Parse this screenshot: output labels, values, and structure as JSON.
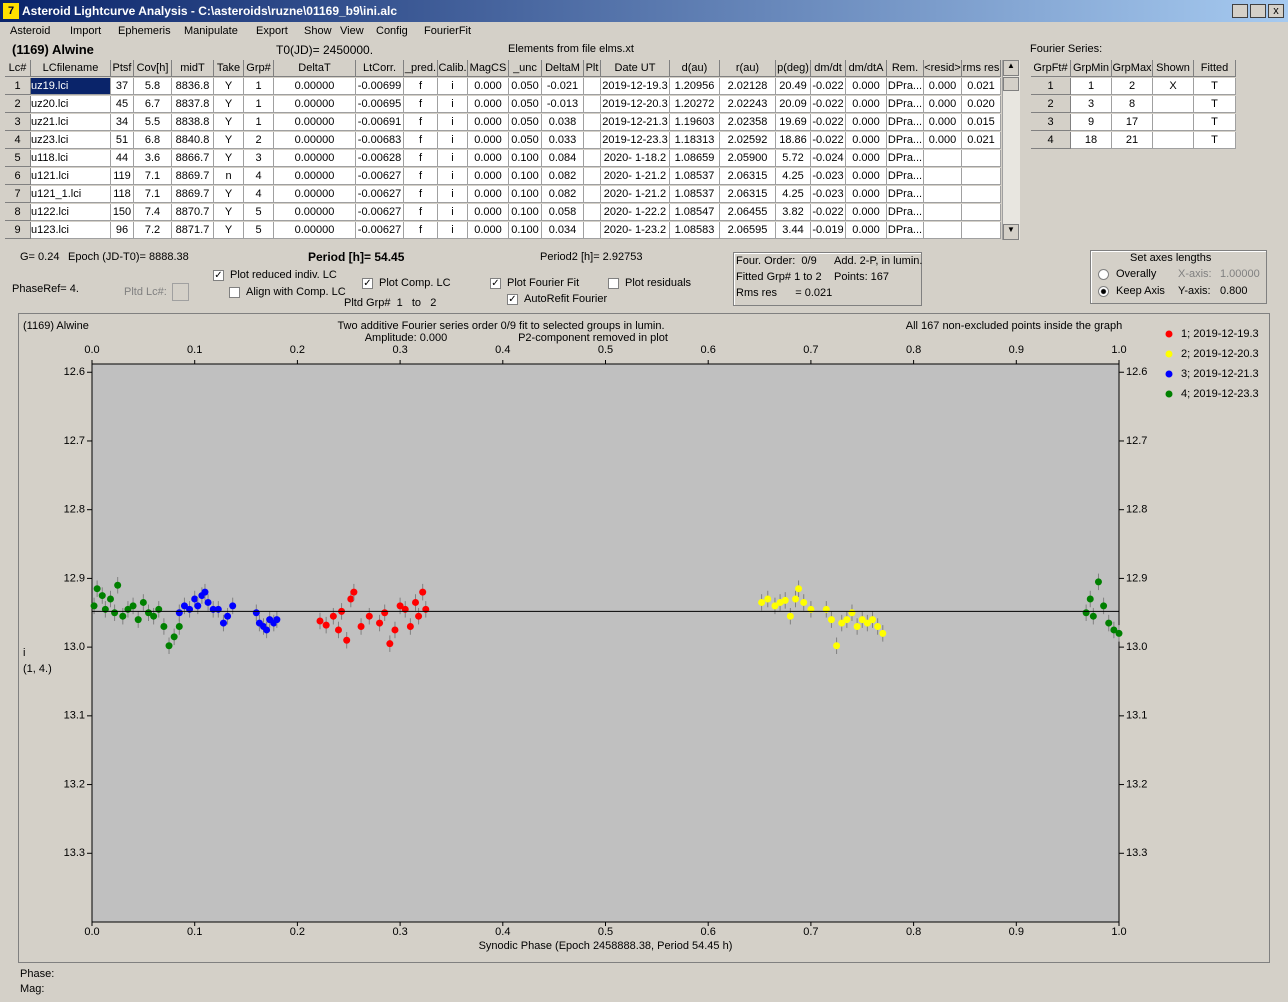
{
  "window": {
    "title": "Asteroid Lightcurve Analysis - C:\\asteroids\\ruzne\\01169_b9\\ini.alc"
  },
  "menu": [
    "Asteroid",
    "Import",
    "Ephemeris",
    "Manipulate",
    "Export",
    "Show",
    "View",
    "Config",
    "FourierFit"
  ],
  "header": {
    "asteroid": "(1169) Alwine",
    "t0": "T0(JD)= 2450000.",
    "elements": "Elements from file elms.xt",
    "fourier_title": "Fourier Series:"
  },
  "lc_table": {
    "columns": [
      "Lc#",
      "LCfilename",
      "Ptsf",
      "Cov[h]",
      "midT",
      "Take",
      "Grp#",
      "DeltaT",
      "LtCorr.",
      "_pred.",
      "Calib.",
      "MagCS",
      "_unc",
      "DeltaM",
      "Plt",
      "Date UT",
      "d(au)",
      "r(au)",
      "p(deg)",
      "dm/dt",
      "dm/dtA",
      "Rem.",
      "<resid>",
      "rms res"
    ],
    "rows": [
      [
        "1",
        "uz19.lci",
        "37",
        "5.8",
        "8836.8",
        "Y",
        "1",
        "0.00000",
        "-0.00699",
        "f",
        "i",
        "0.000",
        "0.050",
        "-0.021",
        null,
        "2019-12-19.3",
        "1.20956",
        "2.02128",
        "20.49",
        "-0.022",
        "0.000",
        "DPra...",
        "0.000",
        "0.021"
      ],
      [
        "2",
        "uz20.lci",
        "45",
        "6.7",
        "8837.8",
        "Y",
        "1",
        "0.00000",
        "-0.00695",
        "f",
        "i",
        "0.000",
        "0.050",
        "-0.013",
        null,
        "2019-12-20.3",
        "1.20272",
        "2.02243",
        "20.09",
        "-0.022",
        "0.000",
        "DPra...",
        "0.000",
        "0.020"
      ],
      [
        "3",
        "uz21.lci",
        "34",
        "5.5",
        "8838.8",
        "Y",
        "1",
        "0.00000",
        "-0.00691",
        "f",
        "i",
        "0.000",
        "0.050",
        "0.038",
        null,
        "2019-12-21.3",
        "1.19603",
        "2.02358",
        "19.69",
        "-0.022",
        "0.000",
        "DPra...",
        "0.000",
        "0.015"
      ],
      [
        "4",
        "uz23.lci",
        "51",
        "6.8",
        "8840.8",
        "Y",
        "2",
        "0.00000",
        "-0.00683",
        "f",
        "i",
        "0.000",
        "0.050",
        "0.033",
        null,
        "2019-12-23.3",
        "1.18313",
        "2.02592",
        "18.86",
        "-0.022",
        "0.000",
        "DPra...",
        "0.000",
        "0.021"
      ],
      [
        "5",
        "u118.lci",
        "44",
        "3.6",
        "8866.7",
        "Y",
        "3",
        "0.00000",
        "-0.00628",
        "f",
        "i",
        "0.000",
        "0.100",
        "0.084",
        null,
        "2020- 1-18.2",
        "1.08659",
        "2.05900",
        "5.72",
        "-0.024",
        "0.000",
        "DPra...",
        null,
        null
      ],
      [
        "6",
        "u121.lci",
        "119",
        "7.1",
        "8869.7",
        "n",
        "4",
        "0.00000",
        "-0.00627",
        "f",
        "i",
        "0.000",
        "0.100",
        "0.082",
        null,
        "2020- 1-21.2",
        "1.08537",
        "2.06315",
        "4.25",
        "-0.023",
        "0.000",
        "DPra...",
        null,
        null
      ],
      [
        "7",
        "u121_1.lci",
        "118",
        "7.1",
        "8869.7",
        "Y",
        "4",
        "0.00000",
        "-0.00627",
        "f",
        "i",
        "0.000",
        "0.100",
        "0.082",
        null,
        "2020- 1-21.2",
        "1.08537",
        "2.06315",
        "4.25",
        "-0.023",
        "0.000",
        "DPra...",
        null,
        null
      ],
      [
        "8",
        "u122.lci",
        "150",
        "7.4",
        "8870.7",
        "Y",
        "5",
        "0.00000",
        "-0.00627",
        "f",
        "i",
        "0.000",
        "0.100",
        "0.058",
        null,
        "2020- 1-22.2",
        "1.08547",
        "2.06455",
        "3.82",
        "-0.022",
        "0.000",
        "DPra...",
        null,
        null
      ],
      [
        "9",
        "u123.lci",
        "96",
        "7.2",
        "8871.7",
        "Y",
        "5",
        "0.00000",
        "-0.00627",
        "f",
        "i",
        "0.000",
        "0.100",
        "0.034",
        null,
        "2020- 1-23.2",
        "1.08583",
        "2.06595",
        "3.44",
        "-0.019",
        "0.000",
        "DPra...",
        null,
        null
      ]
    ]
  },
  "fourier_table": {
    "columns": [
      "GrpFt#",
      "GrpMin",
      "GrpMax",
      "Shown",
      "Fitted"
    ],
    "rows": [
      [
        "1",
        "1",
        "2",
        "X",
        "T"
      ],
      [
        "2",
        "3",
        "8",
        null,
        "T"
      ],
      [
        "3",
        "9",
        "17",
        null,
        "T"
      ],
      [
        "4",
        "18",
        "21",
        null,
        "T"
      ]
    ]
  },
  "controls": {
    "g": "G= 0.24",
    "epoch": "Epoch (JD-T0)= 8888.38",
    "period": "Period [h]= 54.45",
    "period2": "Period2 [h]= 2.92753",
    "phase_ref": "PhaseRef= 4.",
    "pltd_lc": "Pltd Lc#:",
    "pltd_grp": "Pltd Grp#  1   to   2",
    "checkboxes": [
      {
        "label": "Plot reduced indiv. LC",
        "checked": true
      },
      {
        "label": "Align with Comp. LC",
        "checked": false
      },
      {
        "label": "Plot Comp. LC",
        "checked": true
      },
      {
        "label": "Plot Fourier Fit",
        "checked": true
      },
      {
        "label": "Plot residuals",
        "checked": false
      },
      {
        "label": "AutoRefit Fourier",
        "checked": true
      }
    ],
    "info": [
      "Four. Order:  0/9",
      "Add. 2-P, in lumin.",
      "Fitted Grp# 1 to 2",
      "Points: 167",
      "Rms res      = 0.021"
    ],
    "axes": {
      "title": "Set axes lengths",
      "options": [
        {
          "label": "Overally",
          "selected": false
        },
        {
          "label": "Keep Axis",
          "selected": true
        }
      ],
      "x_label": "X-axis:",
      "x_value": "1.00000",
      "y_label": "Y-axis:",
      "y_value": "0.800"
    }
  },
  "chart_data": {
    "type": "scatter",
    "name": "(1169) Alwine",
    "title": "Two additive Fourier series order 0/9 fit to selected groups in lumin.",
    "subtitle_left": "Amplitude: 0.000",
    "subtitle_right": "P2-component removed in plot",
    "note": "All 167 non-excluded points inside the graph",
    "xlabel": "Synodic Phase (Epoch 2458888.38, Period 54.45 h)",
    "ylabel": "i",
    "ylabel2": "(1, 4.)",
    "xlim": [
      0,
      1
    ],
    "ylim": [
      12.588,
      13.4
    ],
    "y_inverted": true,
    "xticks": [
      {
        "value": 0,
        "label": "0.0"
      },
      0.1,
      0.2,
      0.3,
      0.4,
      0.5,
      0.6,
      0.7,
      0.8,
      0.9,
      {
        "value": 1,
        "label": "1.0"
      }
    ],
    "yticks": [
      12.6,
      12.7,
      12.8,
      12.9,
      {
        "value": 13,
        "label": "13.0"
      },
      13.1,
      13.2,
      13.3
    ],
    "fit": {
      "x": [
        0,
        1
      ],
      "values": [
        12.948,
        12.948
      ],
      "color": "#000000"
    },
    "series": [
      {
        "name": "1; 2019-12-19.3",
        "color": "#ff0000",
        "error": 0.012,
        "x": [
          0.222,
          0.228,
          0.235,
          0.24,
          0.243,
          0.248,
          0.252,
          0.255,
          0.262,
          0.27,
          0.28,
          0.285,
          0.29,
          0.295,
          0.3,
          0.305,
          0.31,
          0.315,
          0.318,
          0.322,
          0.325
        ],
        "values": [
          12.962,
          12.968,
          12.955,
          12.975,
          12.948,
          12.99,
          12.93,
          12.92,
          12.97,
          12.955,
          12.965,
          12.95,
          12.995,
          12.975,
          12.94,
          12.945,
          12.97,
          12.935,
          12.955,
          12.92,
          12.945
        ]
      },
      {
        "name": "2; 2019-12-20.3",
        "color": "#ffff00",
        "error": 0.012,
        "x": [
          0.652,
          0.658,
          0.665,
          0.67,
          0.675,
          0.68,
          0.685,
          0.688,
          0.693,
          0.7,
          0.715,
          0.72,
          0.725,
          0.73,
          0.735,
          0.74,
          0.745,
          0.75,
          0.755,
          0.76,
          0.765,
          0.77
        ],
        "values": [
          12.935,
          12.93,
          12.94,
          12.935,
          12.932,
          12.955,
          12.93,
          12.915,
          12.935,
          12.945,
          12.945,
          12.96,
          12.998,
          12.965,
          12.96,
          12.95,
          12.97,
          12.96,
          12.965,
          12.96,
          12.97,
          12.98
        ]
      },
      {
        "name": "3; 2019-12-21.3",
        "color": "#0000ff",
        "error": 0.012,
        "x": [
          0.085,
          0.09,
          0.095,
          0.1,
          0.103,
          0.107,
          0.11,
          0.113,
          0.118,
          0.123,
          0.128,
          0.132,
          0.137,
          0.16,
          0.163,
          0.167,
          0.17,
          0.173,
          0.177,
          0.18
        ],
        "values": [
          12.95,
          12.94,
          12.945,
          12.93,
          12.94,
          12.925,
          12.92,
          12.935,
          12.945,
          12.945,
          12.965,
          12.955,
          12.94,
          12.95,
          12.965,
          12.97,
          12.975,
          12.96,
          12.965,
          12.96
        ]
      },
      {
        "name": "4; 2019-12-23.3",
        "color": "#008000",
        "error": 0.012,
        "x": [
          0.002,
          0.005,
          0.01,
          0.013,
          0.018,
          0.022,
          0.025,
          0.03,
          0.035,
          0.04,
          0.045,
          0.05,
          0.055,
          0.06,
          0.065,
          0.07,
          0.075,
          0.08,
          0.085,
          0.968,
          0.972,
          0.975,
          0.98,
          0.985,
          0.99,
          0.995,
          1.0
        ],
        "values": [
          12.94,
          12.915,
          12.925,
          12.945,
          12.93,
          12.95,
          12.91,
          12.955,
          12.945,
          12.94,
          12.96,
          12.935,
          12.95,
          12.955,
          12.945,
          12.97,
          12.998,
          12.985,
          12.97,
          12.95,
          12.93,
          12.955,
          12.905,
          12.94,
          12.965,
          12.975,
          12.98
        ]
      }
    ],
    "legend": "right"
  },
  "status": {
    "phase": "Phase:",
    "mag": "Mag:"
  }
}
